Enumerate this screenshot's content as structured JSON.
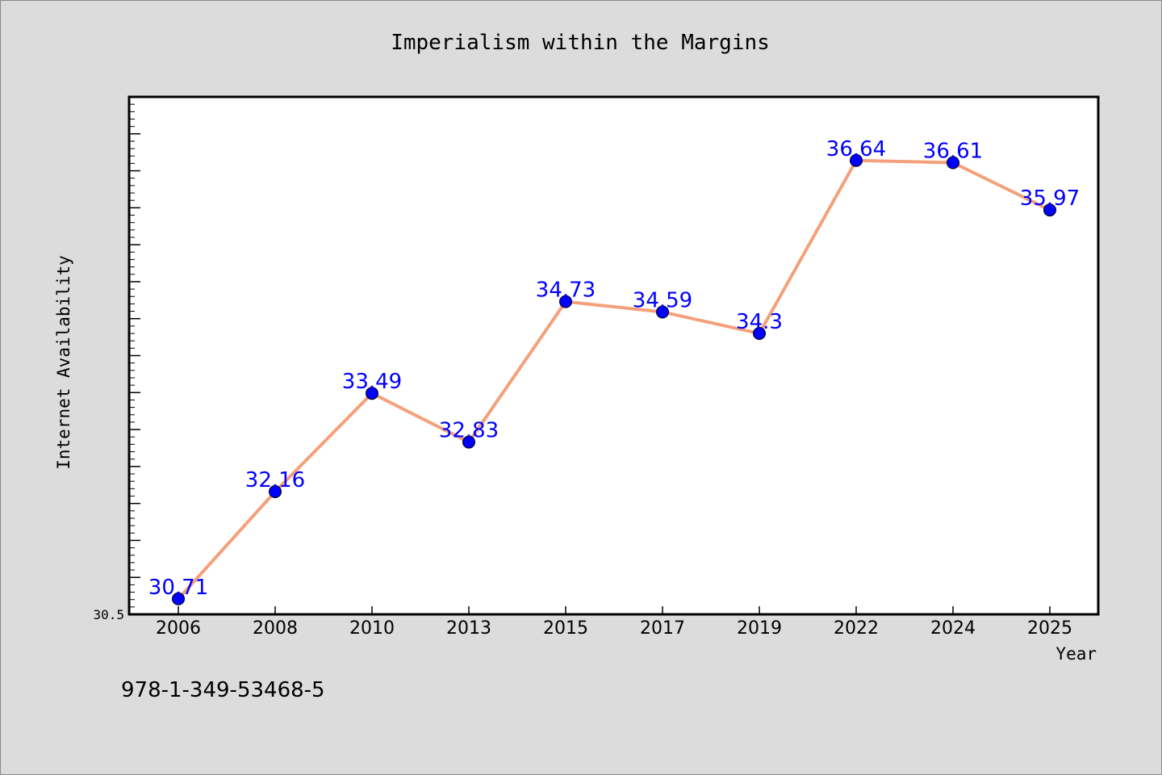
{
  "chart_data": {
    "type": "line",
    "title": "Imperialism within the Margins",
    "xlabel": "Year",
    "ylabel": "Internet Availability",
    "categories": [
      "2006",
      "2008",
      "2010",
      "2013",
      "2015",
      "2017",
      "2019",
      "2022",
      "2024",
      "2025"
    ],
    "series": [
      {
        "values": [
          30.71,
          32.16,
          33.49,
          32.83,
          34.73,
          34.59,
          34.3,
          36.64,
          36.61,
          35.97
        ]
      }
    ],
    "ylim": [
      30.5,
      37.5
    ],
    "y_tick_label": "30.5",
    "data_labels": [
      "30.71",
      "32.16",
      "33.49",
      "32.83",
      "34.73",
      "34.59",
      "34.3",
      "36.64",
      "36.61",
      "35.97"
    ],
    "grid": false,
    "legend": "none",
    "colors": {
      "background": "#dcdcdc",
      "plot_area": "#ffffff",
      "line": "#f4a07a",
      "marker": "#0000ff",
      "data_label": "#0000ff",
      "text": "#000000"
    }
  },
  "footer": {
    "isbn": "978-1-349-53468-5"
  }
}
